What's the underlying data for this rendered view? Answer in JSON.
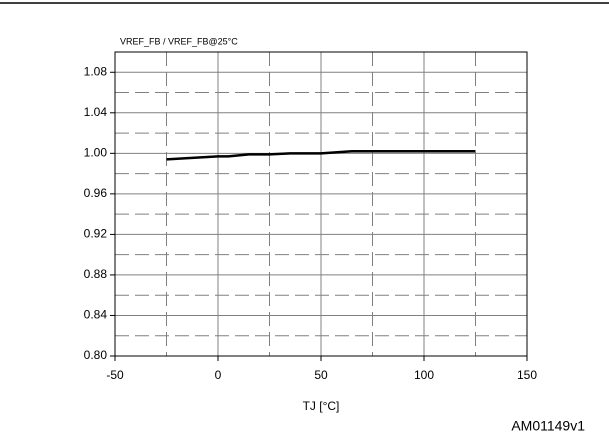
{
  "chart_data": {
    "type": "line",
    "y_axis_label": "VREF_FB / VREF_FB@25°C",
    "x_axis_label": "TJ [°C]",
    "footnote": "AM01149v1",
    "x": [
      -25,
      0,
      5,
      15,
      25,
      35,
      50,
      65,
      100,
      125
    ],
    "series": [
      {
        "name": "VREF_FB",
        "color": "#000000",
        "values": [
          0.994,
          0.997,
          0.997,
          0.999,
          0.999,
          1.0,
          1.0,
          1.002,
          1.002,
          1.002
        ]
      }
    ],
    "xlim": [
      -50,
      150
    ],
    "xticks": [
      -50,
      0,
      50,
      100,
      150
    ],
    "ylim": [
      0.8,
      1.1
    ],
    "yticks": [
      {
        "value": 0.8,
        "label": "0.80"
      },
      0.84,
      0.88,
      0.92,
      0.96,
      {
        "value": 1,
        "label": "1.00"
      },
      1.04,
      1.08
    ],
    "grid": true,
    "minor_grid": true
  }
}
